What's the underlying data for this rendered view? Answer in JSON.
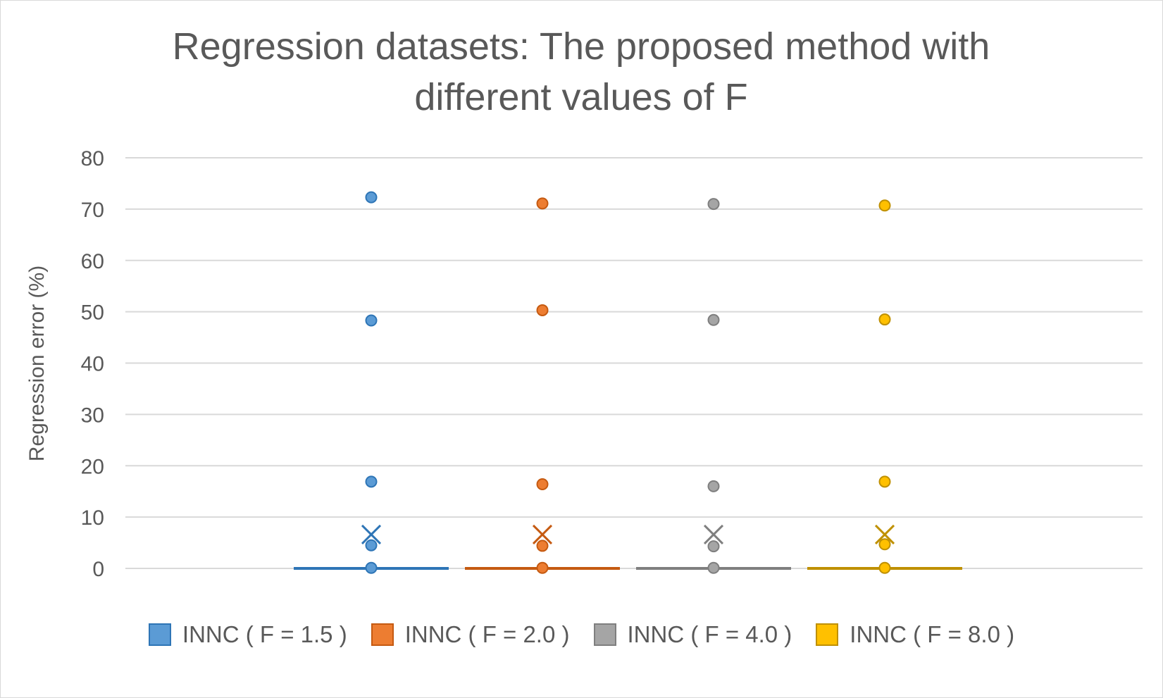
{
  "chart_data": {
    "type": "box",
    "title": "Regression datasets: The proposed method with different values of F",
    "xlabel": "",
    "ylabel": "Regression error (%)",
    "ylim": [
      0,
      80
    ],
    "yticks": [
      "0",
      "10",
      "20",
      "30",
      "40",
      "50",
      "60",
      "70",
      "80"
    ],
    "grid": true,
    "legend_position": "bottom",
    "series": [
      {
        "name": "INNC ( F = 1.5 )",
        "color": "#5b9bd5",
        "edge_color": "#2e75b6",
        "points": [
          72.3,
          48.3,
          16.9,
          4.5,
          0.1
        ],
        "mean": 6.6,
        "box": [
          0,
          0,
          0
        ]
      },
      {
        "name": "INNC ( F = 2.0 )",
        "color": "#ed7d31",
        "edge_color": "#c55a11",
        "points": [
          71.1,
          50.3,
          16.4,
          4.4,
          0.1
        ],
        "mean": 6.6,
        "box": [
          0,
          0,
          0
        ]
      },
      {
        "name": "INNC ( F = 4.0 )",
        "color": "#a5a5a5",
        "edge_color": "#7f7f7f",
        "points": [
          71.0,
          48.4,
          16.0,
          4.3,
          0.1
        ],
        "mean": 6.6,
        "box": [
          0,
          0,
          0
        ]
      },
      {
        "name": "INNC ( F = 8.0 )",
        "color": "#ffc000",
        "edge_color": "#bf9000",
        "points": [
          70.7,
          48.5,
          16.9,
          4.7,
          0.1
        ],
        "mean": 6.6,
        "box": [
          0,
          0,
          0
        ]
      }
    ]
  }
}
